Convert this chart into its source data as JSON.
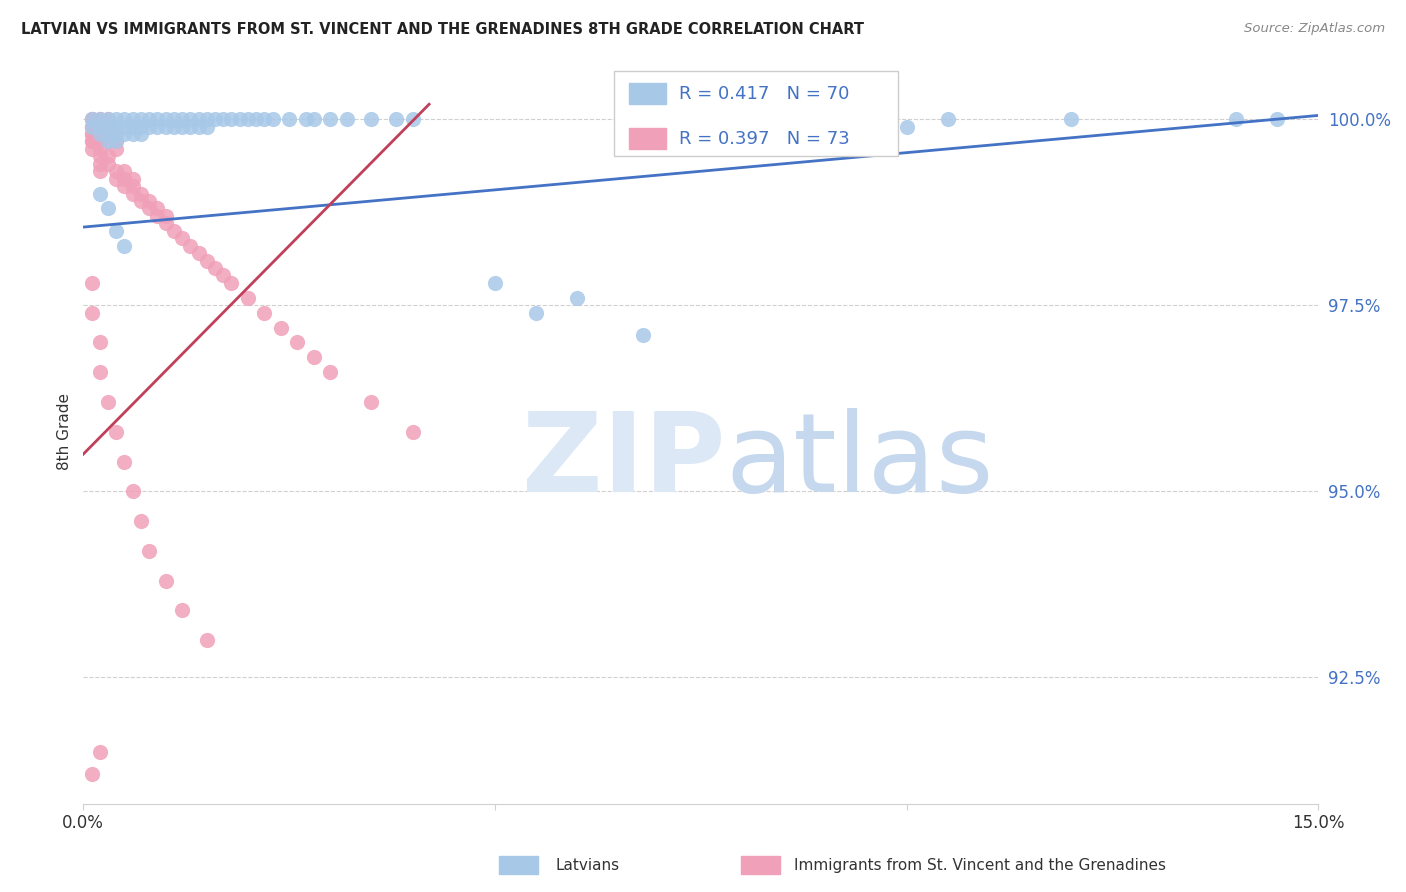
{
  "title": "LATVIAN VS IMMIGRANTS FROM ST. VINCENT AND THE GRENADINES 8TH GRADE CORRELATION CHART",
  "source": "Source: ZipAtlas.com",
  "ylabel": "8th Grade",
  "ytick_labels": [
    "92.5%",
    "95.0%",
    "97.5%",
    "100.0%"
  ],
  "ytick_values": [
    0.925,
    0.95,
    0.975,
    1.0
  ],
  "xmin": 0.0,
  "xmax": 0.15,
  "ymin": 0.908,
  "ymax": 1.008,
  "legend_label_blue": "Latvians",
  "legend_label_pink": "Immigrants from St. Vincent and the Grenadines",
  "R_blue": 0.417,
  "N_blue": 70,
  "R_pink": 0.397,
  "N_pink": 73,
  "color_blue": "#a8c8e8",
  "color_pink": "#f0a0b8",
  "line_color_blue": "#4472c4",
  "line_color_pink": "#c0405a",
  "blue_line_x": [
    0.0,
    0.15
  ],
  "blue_line_y": [
    0.9855,
    1.0005
  ],
  "pink_line_x": [
    0.0,
    0.042
  ],
  "pink_line_y": [
    0.955,
    1.002
  ]
}
